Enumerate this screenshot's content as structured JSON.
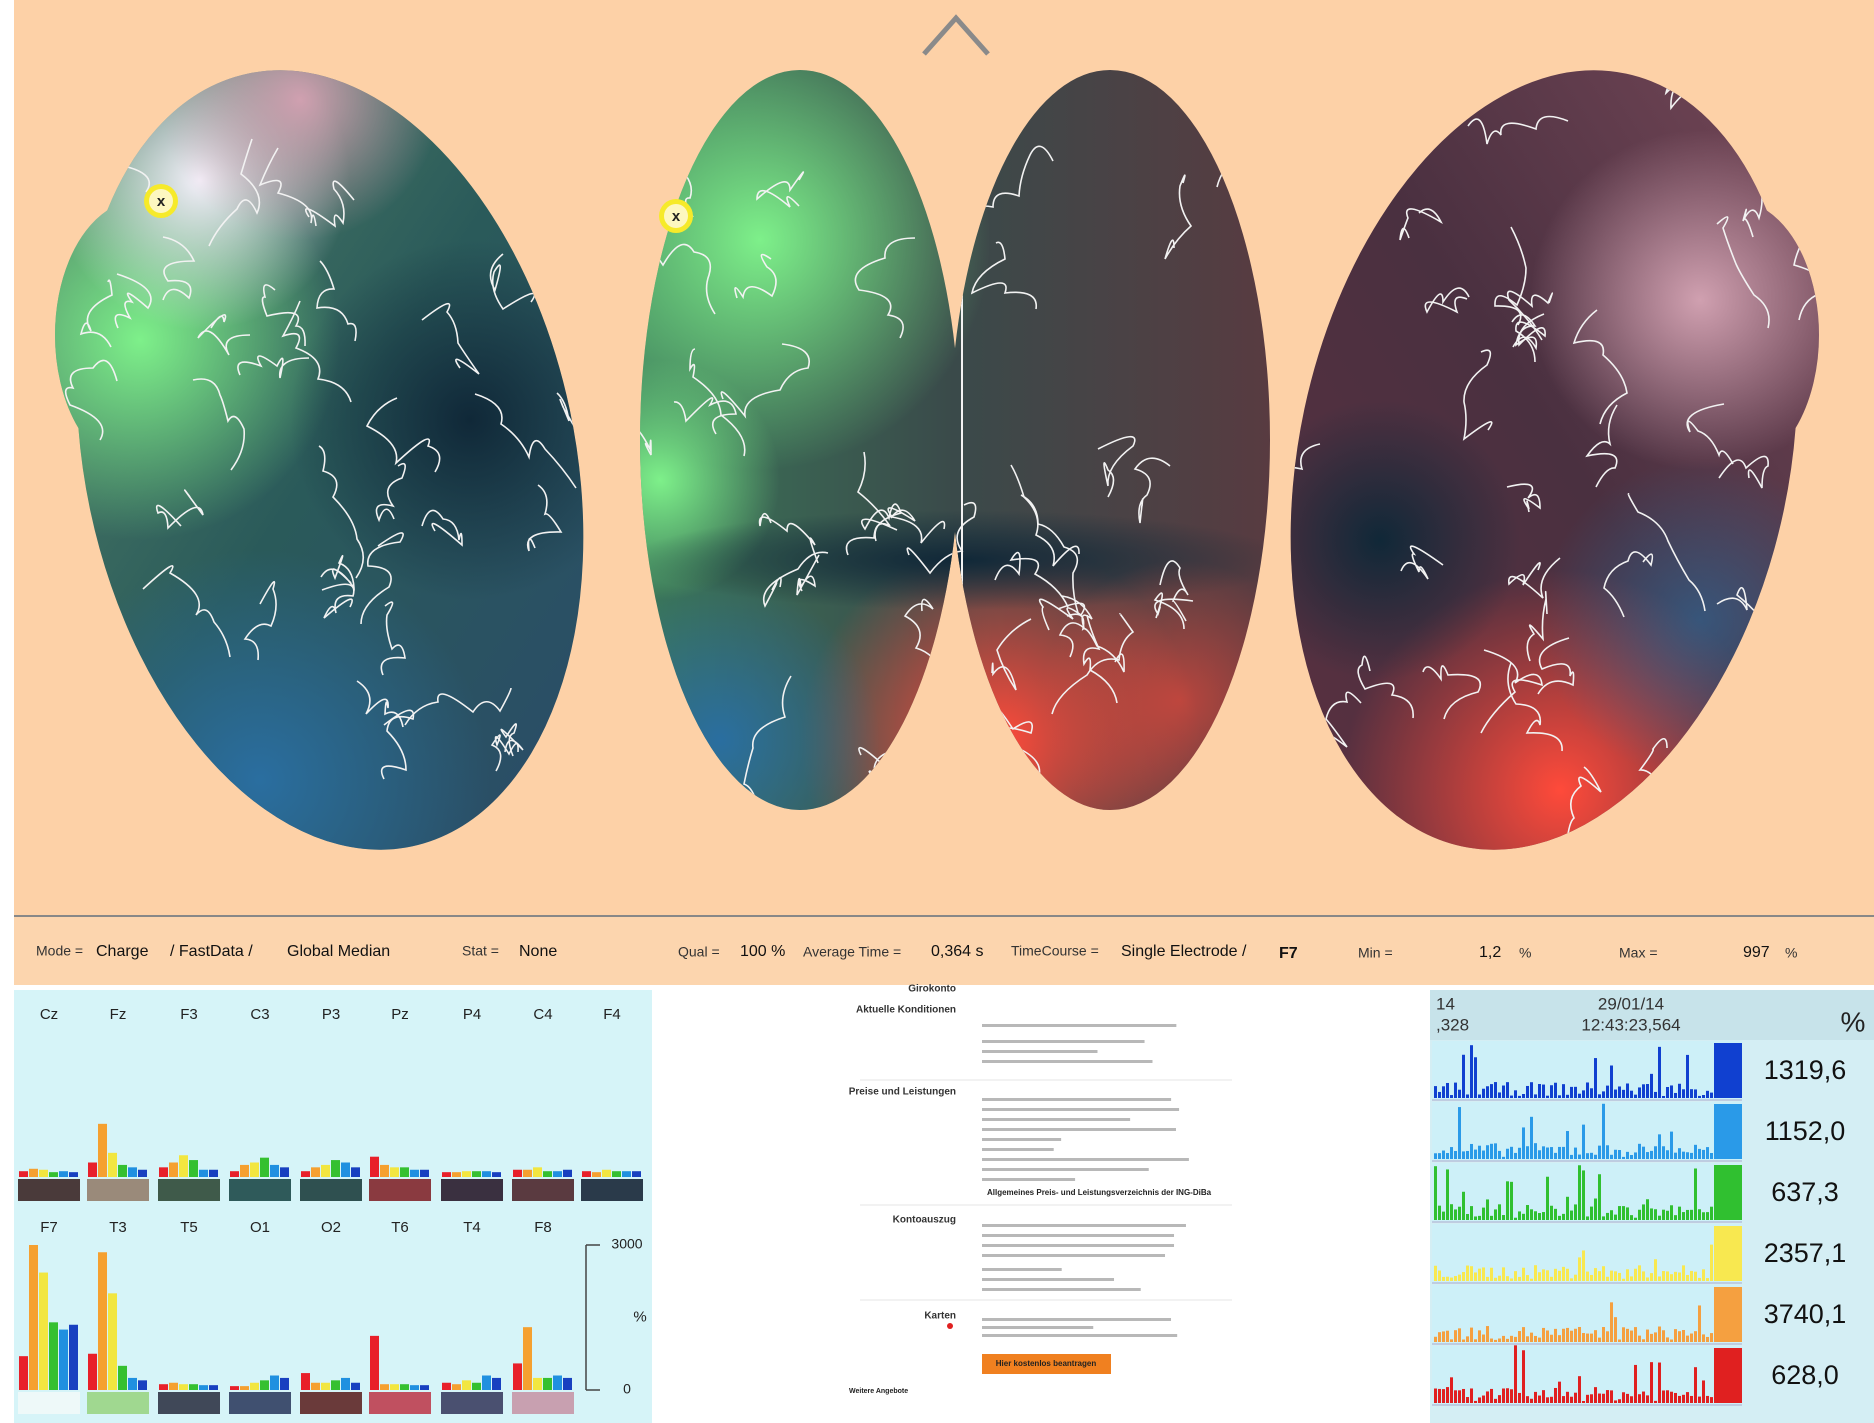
{
  "brain_markers": [
    "x",
    "x"
  ],
  "toolbar": {
    "mode_label": "Mode =",
    "mode": "Charge",
    "source": "/ FastData /",
    "reference": "Global Median",
    "stat_label": "Stat =",
    "stat": "None",
    "qual_label": "Qual =",
    "qual": "100 %",
    "avg_label": "Average Time =",
    "avg": "0,364 s",
    "tc_label": "TimeCourse =",
    "tc": "Single Electrode /",
    "electrode": "F7",
    "min_label": "Min =",
    "min": "1,2",
    "min_unit": "%",
    "max_label": "Max =",
    "max": "997",
    "max_unit": "%"
  },
  "electrode_chart": {
    "type": "bar",
    "series_colors": [
      "#e8202a",
      "#f5a030",
      "#f2e640",
      "#35c030",
      "#2090e0",
      "#1840c0"
    ],
    "ylim": [
      0,
      3000
    ],
    "yticks": [
      0,
      3000
    ],
    "ylabel": "%",
    "rows": [
      {
        "electrodes": [
          {
            "name": "Cz",
            "strip_color": "#4a3a3a",
            "values": [
              120,
              170,
              150,
              100,
              120,
              100
            ]
          },
          {
            "name": "Fz",
            "strip_color": "#9a8a7a",
            "values": [
              300,
              1100,
              500,
              250,
              200,
              150
            ]
          },
          {
            "name": "F3",
            "strip_color": "#3f5a4a",
            "values": [
              200,
              300,
              450,
              350,
              150,
              150
            ]
          },
          {
            "name": "C3",
            "strip_color": "#2f5a5a",
            "values": [
              120,
              250,
              300,
              400,
              250,
              200
            ]
          },
          {
            "name": "P3",
            "strip_color": "#2f5050",
            "values": [
              120,
              200,
              250,
              350,
              300,
              200
            ]
          },
          {
            "name": "Pz",
            "strip_color": "#8a3a40",
            "values": [
              420,
              250,
              200,
              200,
              150,
              150
            ]
          },
          {
            "name": "P4",
            "strip_color": "#3a3040",
            "values": [
              100,
              100,
              120,
              120,
              120,
              100
            ]
          },
          {
            "name": "C4",
            "strip_color": "#5a3a40",
            "values": [
              150,
              150,
              200,
              120,
              120,
              150
            ]
          },
          {
            "name": "F4",
            "strip_color": "#2a3a4a",
            "values": [
              120,
              100,
              150,
              120,
              120,
              120
            ]
          }
        ]
      },
      {
        "electrodes": [
          {
            "name": "F7",
            "strip_color": "#eef9f9",
            "values": [
              700,
              3000,
              2430,
              1400,
              1250,
              1350
            ]
          },
          {
            "name": "T3",
            "strip_color": "#a0d890",
            "values": [
              750,
              2850,
              2000,
              500,
              250,
              200
            ]
          },
          {
            "name": "T5",
            "strip_color": "#404858",
            "values": [
              120,
              150,
              120,
              120,
              100,
              100
            ]
          },
          {
            "name": "O1",
            "strip_color": "#405070",
            "values": [
              80,
              80,
              150,
              200,
              300,
              250
            ]
          },
          {
            "name": "O2",
            "strip_color": "#6a3a3a",
            "values": [
              350,
              150,
              150,
              200,
              250,
              150
            ]
          },
          {
            "name": "T6",
            "strip_color": "#c05060",
            "values": [
              1120,
              120,
              120,
              120,
              100,
              100
            ]
          },
          {
            "name": "T4",
            "strip_color": "#4a5070",
            "values": [
              150,
              120,
              200,
              150,
              300,
              250
            ]
          },
          {
            "name": "F8",
            "strip_color": "#c8a0b0",
            "values": [
              550,
              1300,
              250,
              250,
              300,
              250
            ]
          }
        ]
      }
    ]
  },
  "webpage": {
    "section_top": "Girokonto",
    "sections": [
      "Aktuelle Konditionen",
      "Preise und Leistungen",
      "Kontoauszug",
      "Karten"
    ],
    "link": "Allgemeines Preis- und Leistungsverzeichnis der ING-DiBa",
    "button": "Hier kostenlos beantragen",
    "footer": "Weitere Angebote"
  },
  "time_course": {
    "header": {
      "date_left": "14",
      "date": "29/01/14",
      "time_left": ",328",
      "time": "12:43:23,564",
      "unit": "%"
    },
    "rows": [
      {
        "color": "#1040d0",
        "label": "1319,6"
      },
      {
        "color": "#2a9ae8",
        "label": "1152,0"
      },
      {
        "color": "#30c030",
        "label": "637,3"
      },
      {
        "color": "#f8e850",
        "label": "2357,1"
      },
      {
        "color": "#f5a040",
        "label": "3740,1"
      },
      {
        "color": "#e02020",
        "label": "628,0"
      }
    ]
  }
}
